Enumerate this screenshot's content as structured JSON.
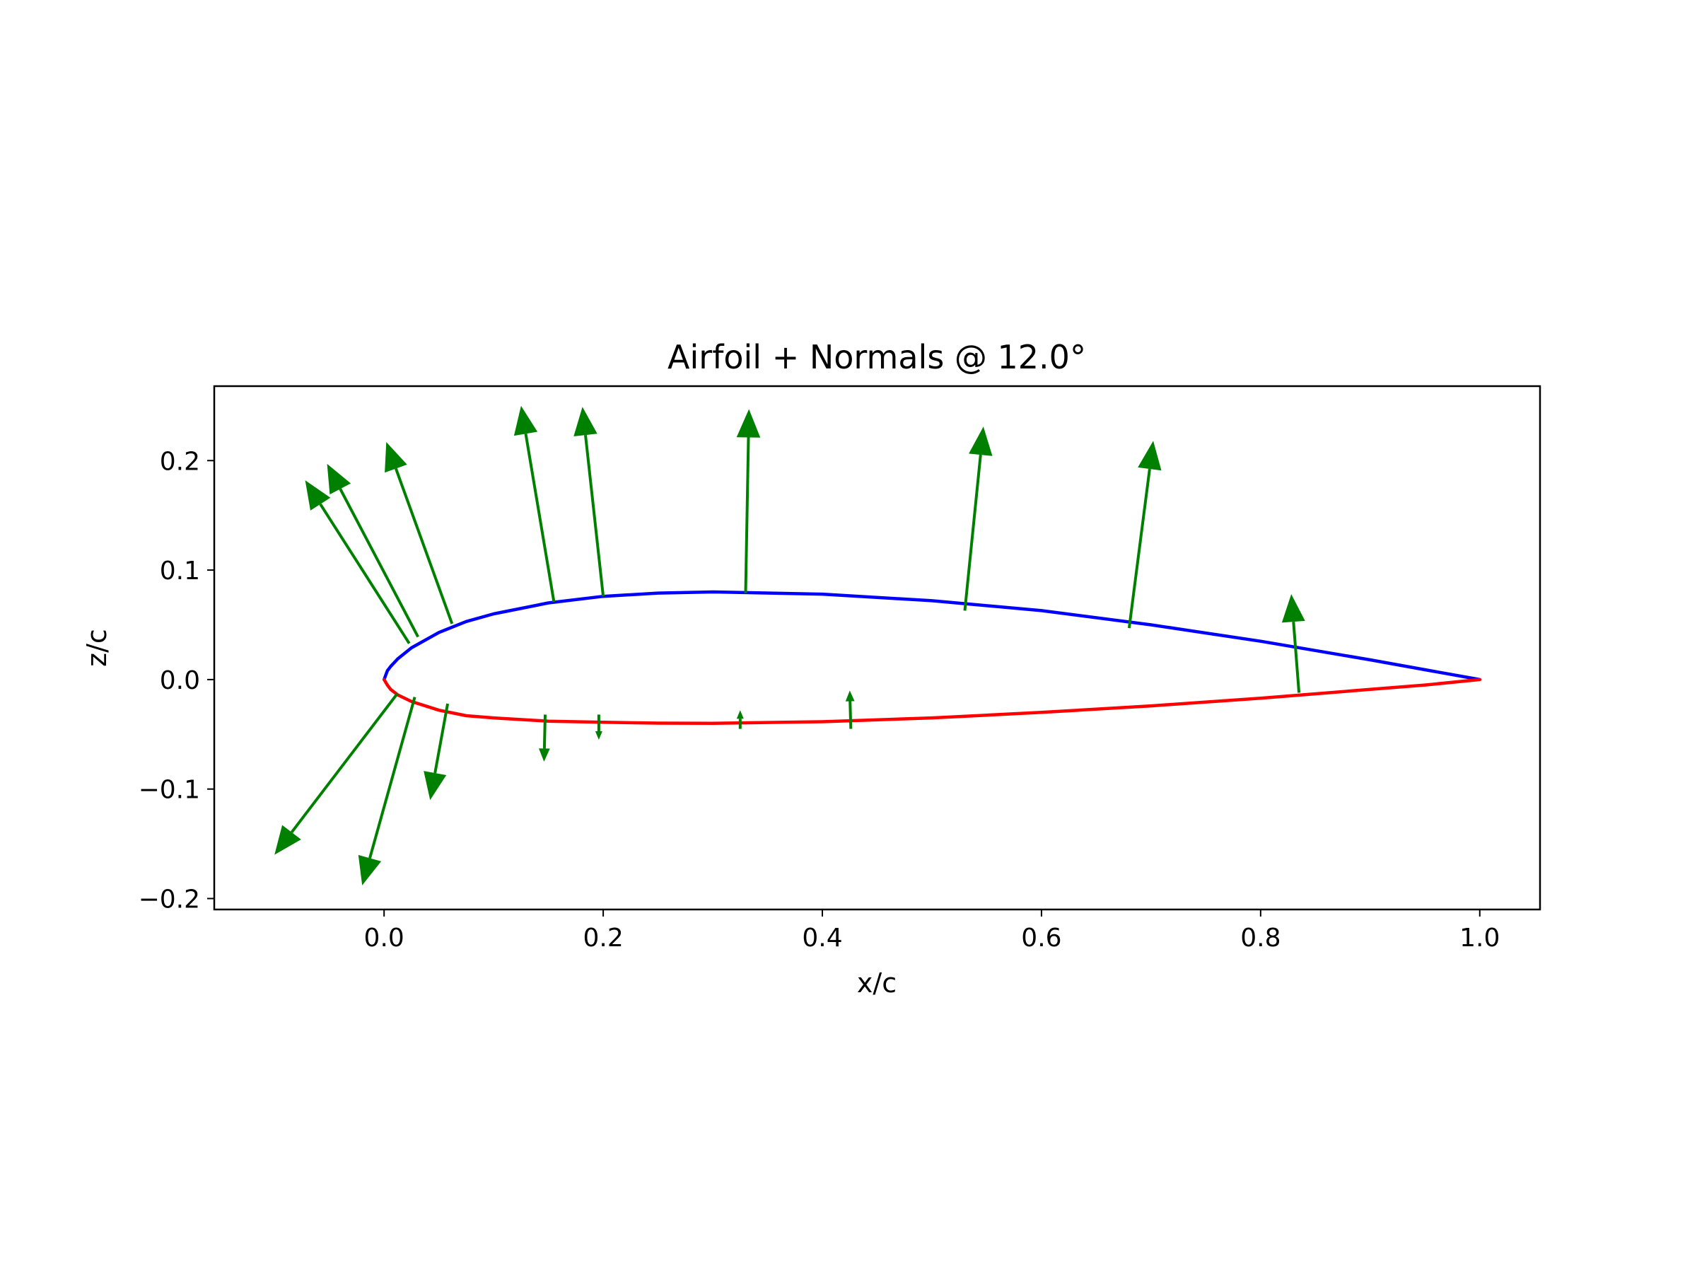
{
  "chart_data": {
    "type": "line",
    "title": "Airfoil + Normals @ 12.0°",
    "xlabel": "x/c",
    "ylabel": "z/c",
    "xlim": [
      -0.155,
      1.055
    ],
    "ylim": [
      -0.21,
      0.268
    ],
    "x_ticks": [
      "0.0",
      "0.2",
      "0.4",
      "0.6",
      "0.8",
      "1.0"
    ],
    "y_ticks": [
      "−0.2",
      "−0.1",
      "0.0",
      "0.1",
      "0.2"
    ],
    "grid": false,
    "colors": {
      "upper_surface": "#0000ff",
      "lower_surface": "#ff0000",
      "normals": "#008000"
    },
    "series": [
      {
        "x": [
          0.0,
          0.003,
          0.006,
          0.0125,
          0.025,
          0.05,
          0.075,
          0.1,
          0.15,
          0.2,
          0.25,
          0.3,
          0.4,
          0.5,
          0.6,
          0.7,
          0.8,
          0.9,
          0.95,
          1.0
        ],
        "y": [
          0.0,
          0.008,
          0.012,
          0.019,
          0.029,
          0.043,
          0.053,
          0.06,
          0.07,
          0.076,
          0.079,
          0.08,
          0.078,
          0.072,
          0.063,
          0.05,
          0.035,
          0.018,
          0.009,
          0.0
        ]
      },
      {
        "x": [
          0.0,
          0.003,
          0.006,
          0.0125,
          0.025,
          0.05,
          0.075,
          0.1,
          0.15,
          0.2,
          0.25,
          0.3,
          0.4,
          0.5,
          0.6,
          0.7,
          0.8,
          0.9,
          0.95,
          1.0
        ],
        "y": [
          0.0,
          -0.005,
          -0.009,
          -0.014,
          -0.02,
          -0.028,
          -0.033,
          -0.035,
          -0.038,
          -0.039,
          -0.0398,
          -0.04,
          -0.0385,
          -0.035,
          -0.03,
          -0.024,
          -0.017,
          -0.009,
          -0.005,
          0.0
        ]
      }
    ],
    "normals": [
      {
        "x0": 0.023,
        "y0": 0.033,
        "x1": -0.072,
        "y1": 0.182
      },
      {
        "x0": 0.031,
        "y0": 0.039,
        "x1": -0.052,
        "y1": 0.197
      },
      {
        "x0": 0.062,
        "y0": 0.051,
        "x1": 0.002,
        "y1": 0.217
      },
      {
        "x0": 0.155,
        "y0": 0.071,
        "x1": 0.125,
        "y1": 0.25
      },
      {
        "x0": 0.2,
        "y0": 0.076,
        "x1": 0.181,
        "y1": 0.249
      },
      {
        "x0": 0.33,
        "y0": 0.079,
        "x1": 0.333,
        "y1": 0.247
      },
      {
        "x0": 0.53,
        "y0": 0.063,
        "x1": 0.547,
        "y1": 0.231
      },
      {
        "x0": 0.68,
        "y0": 0.047,
        "x1": 0.702,
        "y1": 0.218
      },
      {
        "x0": 0.835,
        "y0": -0.012,
        "x1": 0.828,
        "y1": 0.078
      },
      {
        "x0": 0.012,
        "y0": -0.013,
        "x1": -0.1,
        "y1": -0.16
      },
      {
        "x0": 0.028,
        "y0": -0.016,
        "x1": -0.02,
        "y1": -0.188
      },
      {
        "x0": 0.058,
        "y0": -0.022,
        "x1": 0.042,
        "y1": -0.11
      },
      {
        "x0": 0.147,
        "y0": -0.032,
        "x1": 0.146,
        "y1": -0.075
      },
      {
        "x0": 0.196,
        "y0": -0.032,
        "x1": 0.196,
        "y1": -0.055
      },
      {
        "x0": 0.325,
        "y0": -0.045,
        "x1": 0.325,
        "y1": -0.028
      },
      {
        "x0": 0.426,
        "y0": -0.045,
        "x1": 0.425,
        "y1": -0.01
      }
    ]
  }
}
